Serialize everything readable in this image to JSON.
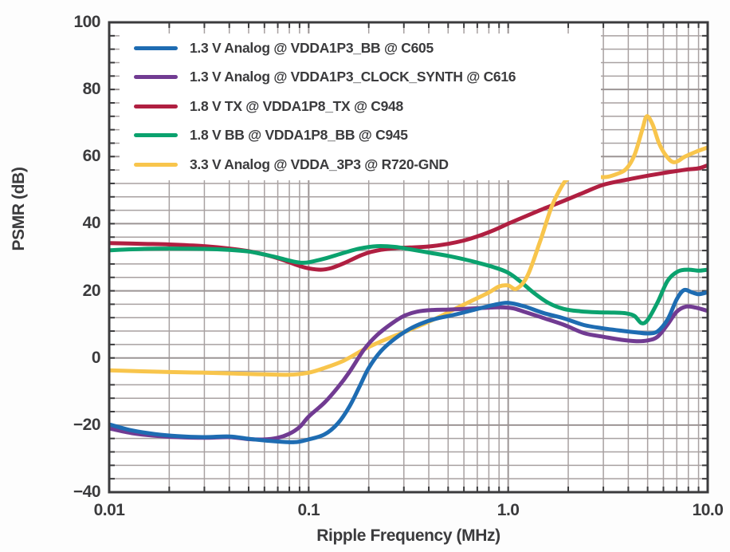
{
  "chart_data": {
    "type": "line",
    "title": "",
    "xlabel": "Ripple Frequency (MHz)",
    "ylabel": "PSMR (dB)",
    "x_scale": "log",
    "xlim": [
      0.01,
      10
    ],
    "ylim": [
      -40,
      100
    ],
    "grid": {
      "on": true,
      "y_minor_step_db": 4,
      "y_major_step_db": 20,
      "x_minor": "log-decade-integers"
    },
    "legend_position": "top-left",
    "x_ticks": [
      {
        "value": 0.01,
        "label": "0.01"
      },
      {
        "value": 0.1,
        "label": "0.1"
      },
      {
        "value": 1.0,
        "label": "1.0"
      },
      {
        "value": 10.0,
        "label": "10.0"
      }
    ],
    "y_ticks": [
      {
        "value": 100,
        "label": "100"
      },
      {
        "value": 80,
        "label": "80"
      },
      {
        "value": 60,
        "label": "60"
      },
      {
        "value": 40,
        "label": "40"
      },
      {
        "value": 20,
        "label": "20"
      },
      {
        "value": 0,
        "label": "0"
      },
      {
        "value": -20,
        "label": "−20"
      },
      {
        "value": -40,
        "label": "−40"
      }
    ],
    "draw_order": [
      2,
      3,
      4,
      1,
      0
    ],
    "series": [
      {
        "name": "1.3 V Analog @ VDDA1P3_BB @ C605",
        "color": "#1E6CB2",
        "points": [
          [
            0.01,
            -19.8
          ],
          [
            0.013,
            -21.6
          ],
          [
            0.017,
            -22.7
          ],
          [
            0.022,
            -23.3
          ],
          [
            0.03,
            -23.6
          ],
          [
            0.04,
            -23.4
          ],
          [
            0.05,
            -24.1
          ],
          [
            0.06,
            -24.6
          ],
          [
            0.07,
            -24.9
          ],
          [
            0.085,
            -25.1
          ],
          [
            0.1,
            -24.3
          ],
          [
            0.12,
            -22.8
          ],
          [
            0.14,
            -19.5
          ],
          [
            0.16,
            -14.5
          ],
          [
            0.18,
            -8.5
          ],
          [
            0.2,
            -3.0
          ],
          [
            0.23,
            2.0
          ],
          [
            0.27,
            5.7
          ],
          [
            0.32,
            8.6
          ],
          [
            0.38,
            10.6
          ],
          [
            0.45,
            11.9
          ],
          [
            0.55,
            13.0
          ],
          [
            0.7,
            14.6
          ],
          [
            0.85,
            15.8
          ],
          [
            1.0,
            16.4
          ],
          [
            1.2,
            15.4
          ],
          [
            1.5,
            13.4
          ],
          [
            1.9,
            11.8
          ],
          [
            2.4,
            9.8
          ],
          [
            3.0,
            8.8
          ],
          [
            3.7,
            8.1
          ],
          [
            4.4,
            7.6
          ],
          [
            5.0,
            7.3
          ],
          [
            5.6,
            7.9
          ],
          [
            6.3,
            11.5
          ],
          [
            7.0,
            17.5
          ],
          [
            7.6,
            20.2
          ],
          [
            8.3,
            19.6
          ],
          [
            9.0,
            19.0
          ],
          [
            10,
            19.6
          ]
        ]
      },
      {
        "name": "1.3 V Analog @ VDDA1P3_CLOCK_SYNTH @ C616",
        "color": "#713B92",
        "points": [
          [
            0.01,
            -21.0
          ],
          [
            0.013,
            -22.4
          ],
          [
            0.017,
            -23.2
          ],
          [
            0.022,
            -23.6
          ],
          [
            0.03,
            -23.8
          ],
          [
            0.04,
            -23.6
          ],
          [
            0.05,
            -24.2
          ],
          [
            0.06,
            -24.3
          ],
          [
            0.07,
            -23.8
          ],
          [
            0.08,
            -22.6
          ],
          [
            0.09,
            -20.6
          ],
          [
            0.1,
            -17.5
          ],
          [
            0.12,
            -13.3
          ],
          [
            0.14,
            -8.8
          ],
          [
            0.16,
            -4.2
          ],
          [
            0.19,
            2.6
          ],
          [
            0.22,
            6.8
          ],
          [
            0.26,
            10.2
          ],
          [
            0.3,
            12.5
          ],
          [
            0.35,
            13.8
          ],
          [
            0.42,
            14.3
          ],
          [
            0.5,
            14.4
          ],
          [
            0.6,
            14.6
          ],
          [
            0.75,
            14.9
          ],
          [
            0.9,
            15.1
          ],
          [
            1.05,
            14.8
          ],
          [
            1.2,
            13.8
          ],
          [
            1.5,
            11.9
          ],
          [
            1.9,
            9.9
          ],
          [
            2.4,
            7.4
          ],
          [
            3.0,
            6.3
          ],
          [
            3.7,
            5.4
          ],
          [
            4.4,
            5.0
          ],
          [
            5.0,
            5.2
          ],
          [
            5.6,
            6.3
          ],
          [
            6.3,
            10.0
          ],
          [
            7.0,
            13.8
          ],
          [
            7.8,
            15.3
          ],
          [
            8.7,
            15.0
          ],
          [
            10,
            14.0
          ]
        ]
      },
      {
        "name": "1.8 V TX @ VDDA1P8_TX @ C948",
        "color": "#B01F41",
        "points": [
          [
            0.01,
            34.2
          ],
          [
            0.015,
            34.0
          ],
          [
            0.02,
            33.8
          ],
          [
            0.03,
            33.3
          ],
          [
            0.04,
            32.6
          ],
          [
            0.05,
            31.8
          ],
          [
            0.06,
            30.8
          ],
          [
            0.07,
            29.7
          ],
          [
            0.08,
            28.5
          ],
          [
            0.09,
            27.4
          ],
          [
            0.1,
            26.7
          ],
          [
            0.115,
            26.3
          ],
          [
            0.13,
            26.8
          ],
          [
            0.15,
            28.2
          ],
          [
            0.18,
            30.4
          ],
          [
            0.2,
            31.4
          ],
          [
            0.23,
            32.2
          ],
          [
            0.27,
            32.7
          ],
          [
            0.32,
            32.9
          ],
          [
            0.4,
            33.2
          ],
          [
            0.5,
            34.0
          ],
          [
            0.6,
            35.0
          ],
          [
            0.7,
            36.2
          ],
          [
            0.85,
            38.1
          ],
          [
            1.0,
            40.0
          ],
          [
            1.2,
            42.0
          ],
          [
            1.5,
            44.4
          ],
          [
            1.9,
            46.8
          ],
          [
            2.4,
            49.3
          ],
          [
            3.0,
            51.6
          ],
          [
            4.0,
            53.2
          ],
          [
            5.0,
            54.3
          ],
          [
            6.0,
            55.1
          ],
          [
            7.0,
            55.7
          ],
          [
            8.0,
            56.2
          ],
          [
            9.0,
            56.5
          ],
          [
            10,
            57.4
          ]
        ]
      },
      {
        "name": "1.8 V BB @ VDDA1P8_BB @ C945",
        "color": "#0BA26E",
        "points": [
          [
            0.01,
            32.1
          ],
          [
            0.015,
            32.5
          ],
          [
            0.02,
            32.6
          ],
          [
            0.03,
            32.5
          ],
          [
            0.04,
            32.2
          ],
          [
            0.05,
            31.7
          ],
          [
            0.06,
            30.8
          ],
          [
            0.07,
            29.9
          ],
          [
            0.08,
            29.0
          ],
          [
            0.09,
            28.4
          ],
          [
            0.1,
            28.5
          ],
          [
            0.12,
            29.6
          ],
          [
            0.15,
            31.3
          ],
          [
            0.18,
            32.6
          ],
          [
            0.22,
            33.3
          ],
          [
            0.27,
            33.1
          ],
          [
            0.32,
            32.4
          ],
          [
            0.4,
            31.4
          ],
          [
            0.5,
            30.4
          ],
          [
            0.6,
            29.4
          ],
          [
            0.7,
            28.4
          ],
          [
            0.85,
            27.0
          ],
          [
            1.0,
            25.4
          ],
          [
            1.15,
            22.8
          ],
          [
            1.35,
            19.3
          ],
          [
            1.6,
            16.3
          ],
          [
            1.9,
            14.6
          ],
          [
            2.3,
            13.9
          ],
          [
            2.8,
            13.6
          ],
          [
            3.4,
            13.5
          ],
          [
            3.9,
            13.3
          ],
          [
            4.3,
            12.5
          ],
          [
            4.65,
            10.4
          ],
          [
            5.0,
            11.3
          ],
          [
            5.6,
            16.5
          ],
          [
            6.3,
            23.0
          ],
          [
            7.1,
            25.8
          ],
          [
            8.0,
            26.3
          ],
          [
            9.0,
            26.0
          ],
          [
            10,
            26.3
          ]
        ]
      },
      {
        "name": "3.3 V Analog @ VDDA_3P3 @ R720-GND",
        "color": "#F8C54C",
        "points": [
          [
            0.01,
            -3.7
          ],
          [
            0.02,
            -4.2
          ],
          [
            0.03,
            -4.4
          ],
          [
            0.045,
            -4.7
          ],
          [
            0.06,
            -4.9
          ],
          [
            0.08,
            -5.0
          ],
          [
            0.1,
            -4.4
          ],
          [
            0.12,
            -3.0
          ],
          [
            0.15,
            -0.8
          ],
          [
            0.19,
            2.6
          ],
          [
            0.23,
            4.9
          ],
          [
            0.27,
            6.6
          ],
          [
            0.32,
            8.3
          ],
          [
            0.38,
            10.2
          ],
          [
            0.45,
            12.2
          ],
          [
            0.55,
            14.8
          ],
          [
            0.65,
            16.9
          ],
          [
            0.8,
            19.5
          ],
          [
            0.9,
            21.3
          ],
          [
            1.0,
            21.6
          ],
          [
            1.1,
            20.6
          ],
          [
            1.25,
            24.5
          ],
          [
            1.45,
            35.0
          ],
          [
            1.65,
            45.0
          ],
          [
            1.85,
            51.0
          ],
          [
            2.0,
            53.4
          ],
          [
            2.3,
            54.3
          ],
          [
            2.7,
            54.0
          ],
          [
            3.1,
            53.9
          ],
          [
            3.5,
            54.8
          ],
          [
            3.9,
            56.3
          ],
          [
            4.3,
            60.5
          ],
          [
            4.7,
            68.0
          ],
          [
            4.95,
            72.0
          ],
          [
            5.3,
            69.5
          ],
          [
            5.7,
            64.0
          ],
          [
            6.2,
            60.2
          ],
          [
            6.8,
            58.3
          ],
          [
            7.7,
            60.0
          ],
          [
            8.7,
            61.4
          ],
          [
            10,
            62.7
          ]
        ]
      }
    ]
  },
  "colors": {
    "axis_border": "#3B3B3D",
    "grid_minor": "#A8A1A1",
    "grid_major": "#9C9595",
    "text": "#3B3B3D",
    "background": "#FDFDFD",
    "plot_background": "#FFFFFF"
  }
}
